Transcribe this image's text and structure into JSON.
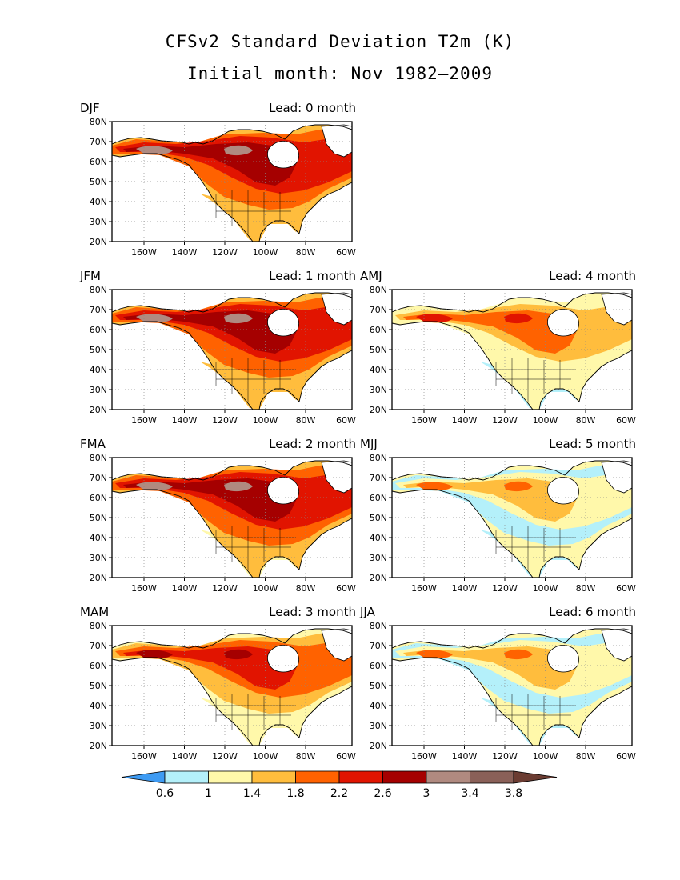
{
  "title": "CFSv2 Standard Deviation T2m (K)",
  "subtitle": "Initial month: Nov 1982–2009",
  "panels": [
    {
      "season": "DJF",
      "lead": "Lead: 0 month",
      "level": 2.3
    },
    {
      "season": "JFM",
      "lead": "Lead: 1 month",
      "level": 2.4
    },
    {
      "season": "AMJ",
      "lead": "Lead: 4 month",
      "level": 1.7
    },
    {
      "season": "FMA",
      "lead": "Lead: 2 month",
      "level": 2.25
    },
    {
      "season": "MJJ",
      "lead": "Lead: 5 month",
      "level": 1.3
    },
    {
      "season": "MAM",
      "lead": "Lead: 3 month",
      "level": 2.0
    },
    {
      "season": "JJA",
      "lead": "Lead: 6 month",
      "level": 1.1
    }
  ],
  "lat_labels": [
    "80N",
    "70N",
    "60N",
    "50N",
    "40N",
    "30N",
    "20N"
  ],
  "lon_labels": [
    "160W",
    "140W",
    "120W",
    "100W",
    "80W",
    "60W"
  ],
  "colorbar": {
    "labels": [
      "0.6",
      "1",
      "1.4",
      "1.8",
      "2.2",
      "2.6",
      "3",
      "3.4",
      "3.8"
    ],
    "colors": [
      "#3e9bf3",
      "#b4f0fa",
      "#fff8aa",
      "#ffbd3d",
      "#ff6200",
      "#e11400",
      "#a50000",
      "#b08a80",
      "#8a6058",
      "#6b3c32"
    ]
  }
}
